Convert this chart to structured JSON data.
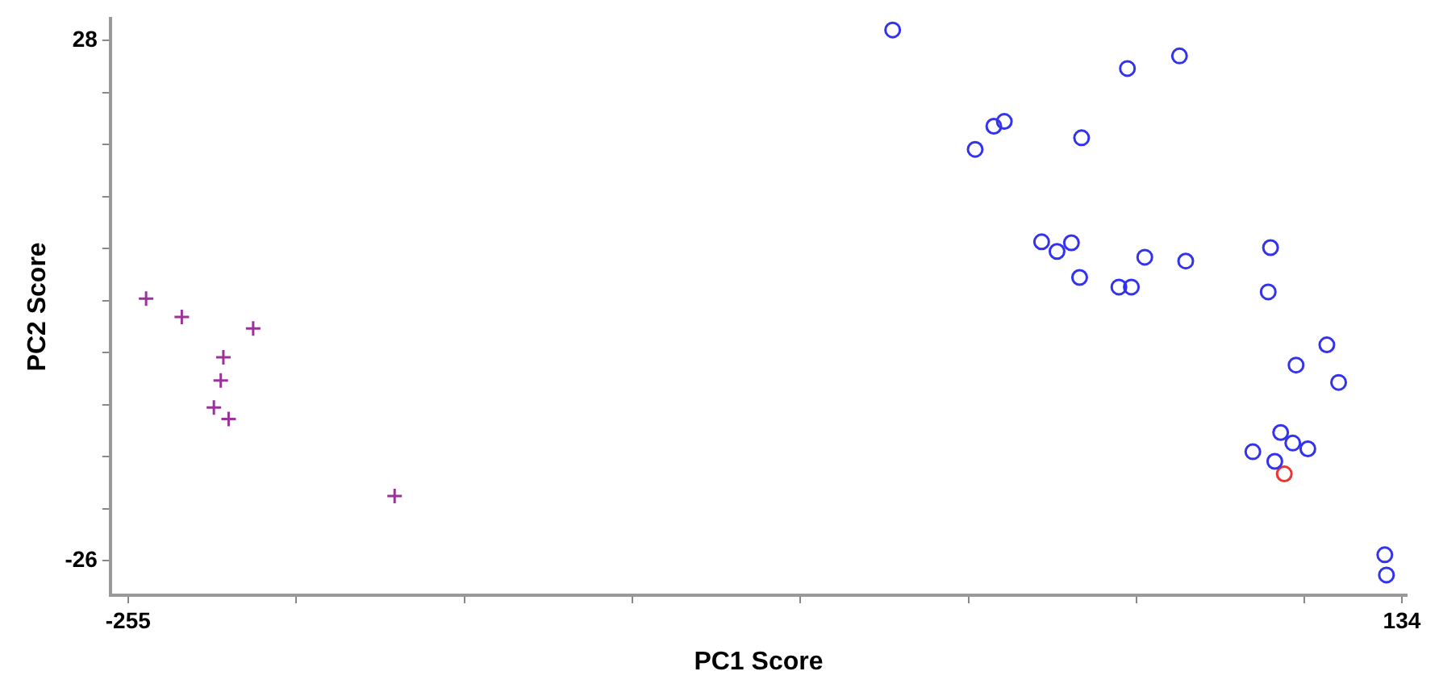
{
  "chart_data": {
    "type": "scatter",
    "xlabel": "PC1 Score",
    "ylabel": "PC2 Score",
    "xlim": [
      -260.4,
      135.5
    ],
    "ylim": [
      -29.6,
      30.3
    ],
    "xticks": [
      -255,
      {
        "value": -203.7,
        "label": null
      },
      {
        "value": -152.3,
        "label": null
      },
      {
        "value": -101,
        "label": null
      },
      {
        "value": -49.7,
        "label": null
      },
      {
        "value": 1.7,
        "label": null
      },
      {
        "value": 53,
        "label": null
      },
      {
        "value": 104.3,
        "label": null
      },
      134
    ],
    "yticks": [
      -26,
      {
        "value": -20.6,
        "label": null
      },
      {
        "value": -15.2,
        "label": null
      },
      {
        "value": -9.8,
        "label": null
      },
      {
        "value": -4.4,
        "label": null
      },
      {
        "value": 1,
        "label": null
      },
      {
        "value": 6.4,
        "label": null
      },
      {
        "value": 11.8,
        "label": null
      },
      {
        "value": 17.2,
        "label": null
      },
      {
        "value": 22.6,
        "label": null
      },
      28
    ],
    "grid": false,
    "legend": false,
    "series": [
      {
        "color": "#993399",
        "marker": "cross",
        "x": [
          -249.5,
          -238.6,
          -216.8,
          -225.9,
          -226.7,
          -228.8,
          -224.3,
          -173.6
        ],
        "values": [
          1.2,
          -0.7,
          -1.9,
          -4.9,
          -7.3,
          -10.1,
          -11.3,
          -19.3
        ]
      },
      {
        "color": "#3333ee",
        "marker": "circle",
        "x": [
          -21.5,
          50.2,
          66.1,
          3.7,
          9.4,
          12.6,
          36.2,
          24.0,
          28.7,
          33.1,
          55.5,
          68.0,
          35.6,
          47.6,
          51.4,
          93.9,
          93.2,
          111.1,
          101.7,
          114.7,
          97.0,
          100.7,
          105.3,
          88.5,
          95.2,
          128.8,
          129.3
        ],
        "values": [
          29.1,
          25.1,
          26.4,
          16.7,
          19.1,
          19.6,
          17.9,
          7.1,
          6.1,
          7.0,
          5.5,
          5.1,
          3.4,
          2.4,
          2.4,
          6.5,
          1.9,
          -3.6,
          -5.7,
          -7.5,
          -12.7,
          -13.8,
          -14.4,
          -14.7,
          -15.7,
          -25.4,
          -27.5
        ]
      },
      {
        "color": "#ee3333",
        "marker": "circle",
        "x": [
          98.1
        ],
        "values": [
          -17.0
        ]
      }
    ]
  }
}
